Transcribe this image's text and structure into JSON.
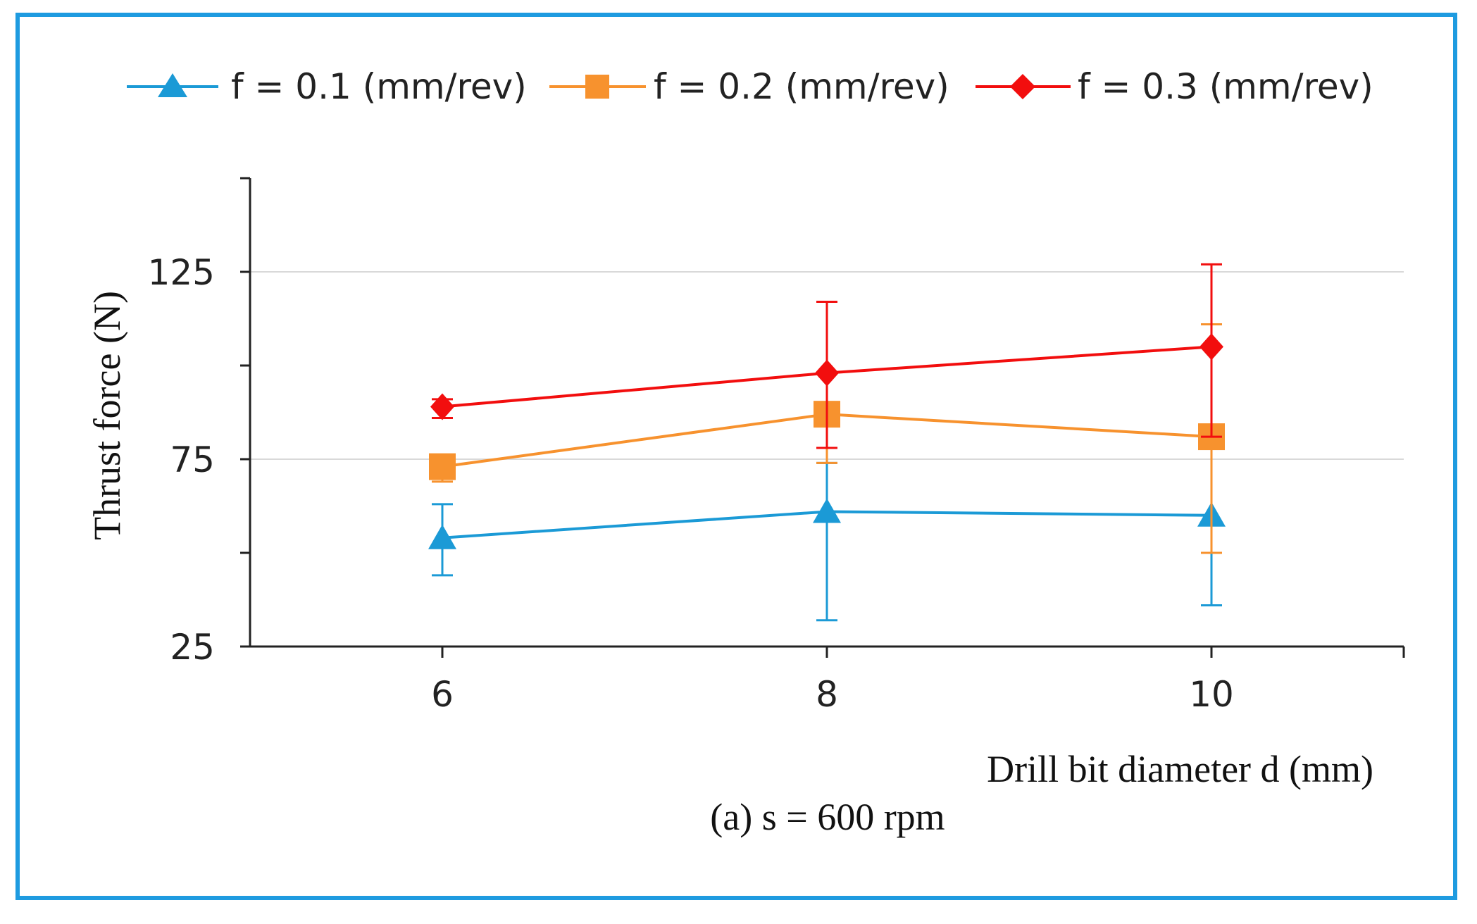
{
  "colors": {
    "frame": "#1e9be0",
    "series_blue": "#1b9ad6",
    "series_orange": "#f7922e",
    "series_red": "#f20e0e",
    "grid": "#d9d9d9",
    "axis": "#222222"
  },
  "chart_data": {
    "type": "line",
    "title": "",
    "caption": "(a) s =  600 rpm",
    "xlabel": "Drill  bit diameter  d (mm)",
    "ylabel": "Thrust force (N)",
    "categories": [
      "6",
      "8",
      "10"
    ],
    "x": [
      6,
      8,
      10
    ],
    "xlim": [
      5,
      11
    ],
    "ylim": [
      25,
      150
    ],
    "y_ticks": [
      25,
      75,
      125
    ],
    "y_tick_labels": [
      "25",
      "75",
      "125"
    ],
    "y_minor_ticks": [
      50,
      100
    ],
    "grid": "horizontal at labeled ticks",
    "legend_position": "top",
    "series": [
      {
        "name": "f = 0.1 (mm/rev)",
        "marker": "triangle",
        "color_key": "series_blue",
        "values": [
          54,
          61,
          60
        ],
        "err_low": [
          44,
          32,
          36
        ],
        "err_high": [
          63,
          74,
          50
        ]
      },
      {
        "name": "f = 0.2 (mm/rev)",
        "marker": "square",
        "color_key": "series_orange",
        "values": [
          73,
          87,
          81
        ],
        "err_low": [
          69,
          74,
          50
        ],
        "err_high": [
          76,
          87,
          111
        ]
      },
      {
        "name": "f = 0.3 (mm/rev)",
        "marker": "diamond",
        "color_key": "series_red",
        "values": [
          89,
          98,
          105
        ],
        "err_low": [
          86,
          78,
          81
        ],
        "err_high": [
          91,
          117,
          127
        ]
      }
    ]
  }
}
